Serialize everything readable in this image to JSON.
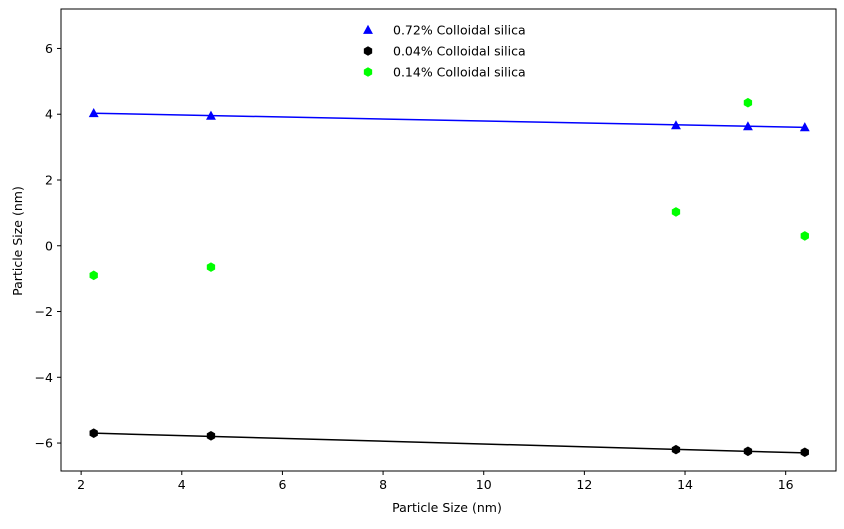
{
  "chart_data": {
    "type": "scatter",
    "title": "",
    "xlabel": "Particle Size (nm)",
    "ylabel": "Particle Size (nm)",
    "xlim": [
      1.6,
      17.0
    ],
    "ylim": [
      -6.85,
      7.2
    ],
    "xticks": [
      2,
      4,
      6,
      8,
      10,
      12,
      14,
      16
    ],
    "yticks": [
      -6,
      -4,
      -2,
      0,
      2,
      4,
      6
    ],
    "xtick_labels": [
      "2",
      "4",
      "6",
      "8",
      "10",
      "12",
      "14",
      "16"
    ],
    "ytick_labels": [
      "−6",
      "−4",
      "−2",
      "0",
      "2",
      "4",
      "6"
    ],
    "grid": false,
    "legend_position": "upper-center",
    "series": [
      {
        "name": "0.72% Colloidal silica",
        "marker": "triangle",
        "color": "#0000ff",
        "x": [
          2.25,
          4.58,
          13.82,
          15.25,
          16.38
        ],
        "y": [
          4.03,
          3.95,
          3.66,
          3.63,
          3.6
        ],
        "fit_line": {
          "x": [
            2.25,
            16.38
          ],
          "y": [
            4.03,
            3.6
          ]
        }
      },
      {
        "name": "0.04% Colloidal silica",
        "marker": "hexagon",
        "color": "#000000",
        "x": [
          2.25,
          4.58,
          13.82,
          15.25,
          16.38
        ],
        "y": [
          -5.7,
          -5.78,
          -6.2,
          -6.25,
          -6.28
        ],
        "fit_line": {
          "x": [
            2.25,
            16.38
          ],
          "y": [
            -5.7,
            -6.3
          ]
        }
      },
      {
        "name": "0.14% Colloidal silica",
        "marker": "hexagon",
        "color": "#00ff00",
        "x": [
          2.25,
          4.58,
          13.82,
          15.25,
          16.38
        ],
        "y": [
          -0.9,
          -0.65,
          1.03,
          4.35,
          0.3
        ]
      }
    ]
  }
}
